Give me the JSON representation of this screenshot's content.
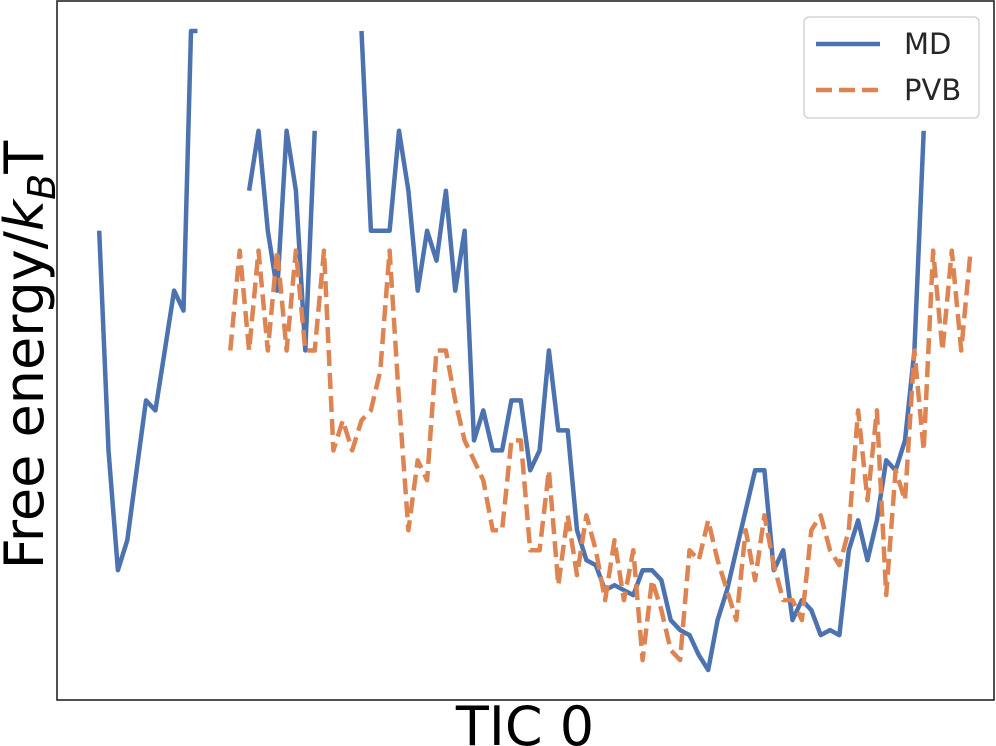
{
  "chart_data": {
    "type": "line",
    "xlabel": "TIC 0",
    "ylabel": "Free energy/",
    "ylabel_symbol": "k",
    "ylabel_subscript": "B",
    "ylabel_suffix": "T",
    "xlim": [
      0,
      100
    ],
    "ylim": [
      0,
      7
    ],
    "ticks_shown": false,
    "grid": false,
    "legend_position": "top-right",
    "series": [
      {
        "name": "MD",
        "color": "#4c72b0",
        "style": "solid",
        "segments": [
          [
            [
              4.5,
              4.7
            ],
            [
              5.5,
              2.5
            ],
            [
              6.5,
              1.3
            ],
            [
              7.5,
              1.6
            ],
            [
              8.5,
              2.3
            ],
            [
              9.5,
              3.0
            ],
            [
              10.5,
              2.9
            ],
            [
              11.5,
              3.5
            ],
            [
              12.5,
              4.1
            ],
            [
              13.5,
              3.9
            ],
            [
              14.3,
              6.7
            ],
            [
              15.0,
              6.7
            ]
          ],
          [
            [
              20.5,
              5.1
            ],
            [
              21.5,
              5.7
            ],
            [
              22.5,
              4.7
            ],
            [
              23.5,
              4.1
            ],
            [
              24.5,
              5.7
            ],
            [
              25.5,
              5.1
            ],
            [
              26.5,
              3.5
            ],
            [
              27.5,
              5.7
            ]
          ],
          [
            [
              32.5,
              6.7
            ],
            [
              33.5,
              4.7
            ],
            [
              34.5,
              4.7
            ],
            [
              35.5,
              4.7
            ],
            [
              36.5,
              5.7
            ],
            [
              37.5,
              5.1
            ],
            [
              38.5,
              4.1
            ],
            [
              39.5,
              4.7
            ],
            [
              40.5,
              4.4
            ],
            [
              41.5,
              5.1
            ],
            [
              42.5,
              4.1
            ],
            [
              43.5,
              4.7
            ],
            [
              44.5,
              2.6
            ],
            [
              45.5,
              2.9
            ],
            [
              46.5,
              2.5
            ],
            [
              47.5,
              2.5
            ],
            [
              48.5,
              3.0
            ],
            [
              49.5,
              3.0
            ],
            [
              50.5,
              2.3
            ],
            [
              51.5,
              2.5
            ],
            [
              52.5,
              3.5
            ],
            [
              53.5,
              2.7
            ],
            [
              54.5,
              2.7
            ],
            [
              55.5,
              1.7
            ],
            [
              56.5,
              1.4
            ],
            [
              57.5,
              1.35
            ],
            [
              58.5,
              1.1
            ],
            [
              59.5,
              1.15
            ],
            [
              60.5,
              1.1
            ],
            [
              61.5,
              1.05
            ],
            [
              62.5,
              1.3
            ],
            [
              63.5,
              1.3
            ],
            [
              64.5,
              1.2
            ],
            [
              65.5,
              0.8
            ],
            [
              66.5,
              0.7
            ],
            [
              67.5,
              0.65
            ],
            [
              68.5,
              0.45
            ],
            [
              69.5,
              0.3
            ],
            [
              70.5,
              0.8
            ],
            [
              71.5,
              1.1
            ],
            [
              72.5,
              1.5
            ],
            [
              73.5,
              1.9
            ],
            [
              74.5,
              2.3
            ],
            [
              75.5,
              2.3
            ],
            [
              76.5,
              1.3
            ],
            [
              77.5,
              1.5
            ],
            [
              78.5,
              0.8
            ],
            [
              79.5,
              1.0
            ],
            [
              80.5,
              0.9
            ],
            [
              81.5,
              0.65
            ],
            [
              82.5,
              0.7
            ],
            [
              83.5,
              0.65
            ],
            [
              84.5,
              1.5
            ],
            [
              85.5,
              1.8
            ],
            [
              86.5,
              1.4
            ],
            [
              87.5,
              1.8
            ],
            [
              88.5,
              2.4
            ],
            [
              89.5,
              2.3
            ],
            [
              90.5,
              2.6
            ],
            [
              91.5,
              3.5
            ],
            [
              92.5,
              5.7
            ]
          ]
        ]
      },
      {
        "name": "PVB",
        "color": "#dd8452",
        "style": "dashed",
        "segments": [
          [
            [
              18.5,
              3.5
            ],
            [
              19.5,
              4.5
            ],
            [
              20.5,
              3.5
            ],
            [
              21.5,
              4.5
            ],
            [
              22.5,
              3.5
            ],
            [
              23.5,
              4.5
            ],
            [
              24.5,
              3.5
            ],
            [
              25.5,
              4.5
            ],
            [
              26.5,
              3.5
            ],
            [
              27.5,
              3.5
            ],
            [
              28.5,
              4.5
            ],
            [
              29.5,
              2.5
            ],
            [
              30.5,
              2.8
            ],
            [
              31.5,
              2.5
            ],
            [
              32.5,
              2.8
            ],
            [
              33.5,
              2.9
            ],
            [
              34.5,
              3.3
            ],
            [
              35.5,
              4.5
            ],
            [
              36.5,
              3.0
            ],
            [
              37.5,
              1.7
            ],
            [
              38.5,
              2.4
            ],
            [
              39.5,
              2.2
            ],
            [
              40.5,
              3.5
            ],
            [
              41.5,
              3.5
            ],
            [
              42.5,
              3.0
            ],
            [
              43.5,
              2.6
            ],
            [
              44.5,
              2.4
            ],
            [
              45.5,
              2.2
            ],
            [
              46.5,
              1.7
            ],
            [
              47.5,
              1.7
            ],
            [
              48.5,
              2.6
            ],
            [
              49.5,
              2.6
            ],
            [
              50.5,
              1.5
            ],
            [
              51.5,
              1.5
            ],
            [
              52.5,
              2.3
            ],
            [
              53.5,
              1.15
            ],
            [
              54.5,
              1.85
            ],
            [
              55.5,
              1.25
            ],
            [
              56.5,
              1.85
            ],
            [
              57.5,
              1.5
            ],
            [
              58.5,
              1.0
            ],
            [
              59.5,
              1.6
            ],
            [
              60.5,
              1.0
            ],
            [
              61.5,
              1.5
            ],
            [
              62.5,
              0.4
            ],
            [
              63.5,
              1.2
            ],
            [
              64.5,
              0.9
            ],
            [
              65.5,
              0.5
            ],
            [
              66.5,
              0.4
            ],
            [
              67.5,
              1.5
            ],
            [
              68.5,
              1.4
            ],
            [
              69.5,
              1.8
            ],
            [
              70.5,
              1.4
            ],
            [
              71.5,
              1.1
            ],
            [
              72.5,
              0.8
            ],
            [
              73.5,
              1.7
            ],
            [
              74.5,
              1.2
            ],
            [
              75.5,
              1.85
            ],
            [
              76.5,
              1.35
            ],
            [
              77.5,
              1.0
            ],
            [
              78.5,
              1.0
            ],
            [
              79.5,
              0.8
            ],
            [
              80.5,
              1.7
            ],
            [
              81.5,
              1.85
            ],
            [
              82.5,
              1.5
            ],
            [
              83.5,
              1.35
            ],
            [
              84.5,
              1.7
            ],
            [
              85.5,
              2.9
            ],
            [
              86.5,
              2.0
            ],
            [
              87.5,
              2.9
            ],
            [
              88.5,
              1.05
            ],
            [
              89.5,
              2.3
            ],
            [
              90.5,
              2.0
            ],
            [
              91.5,
              3.5
            ],
            [
              92.5,
              2.5
            ],
            [
              93.5,
              4.5
            ],
            [
              94.5,
              3.5
            ],
            [
              95.5,
              4.5
            ],
            [
              96.5,
              3.5
            ],
            [
              97.5,
              4.5
            ]
          ]
        ]
      }
    ]
  }
}
